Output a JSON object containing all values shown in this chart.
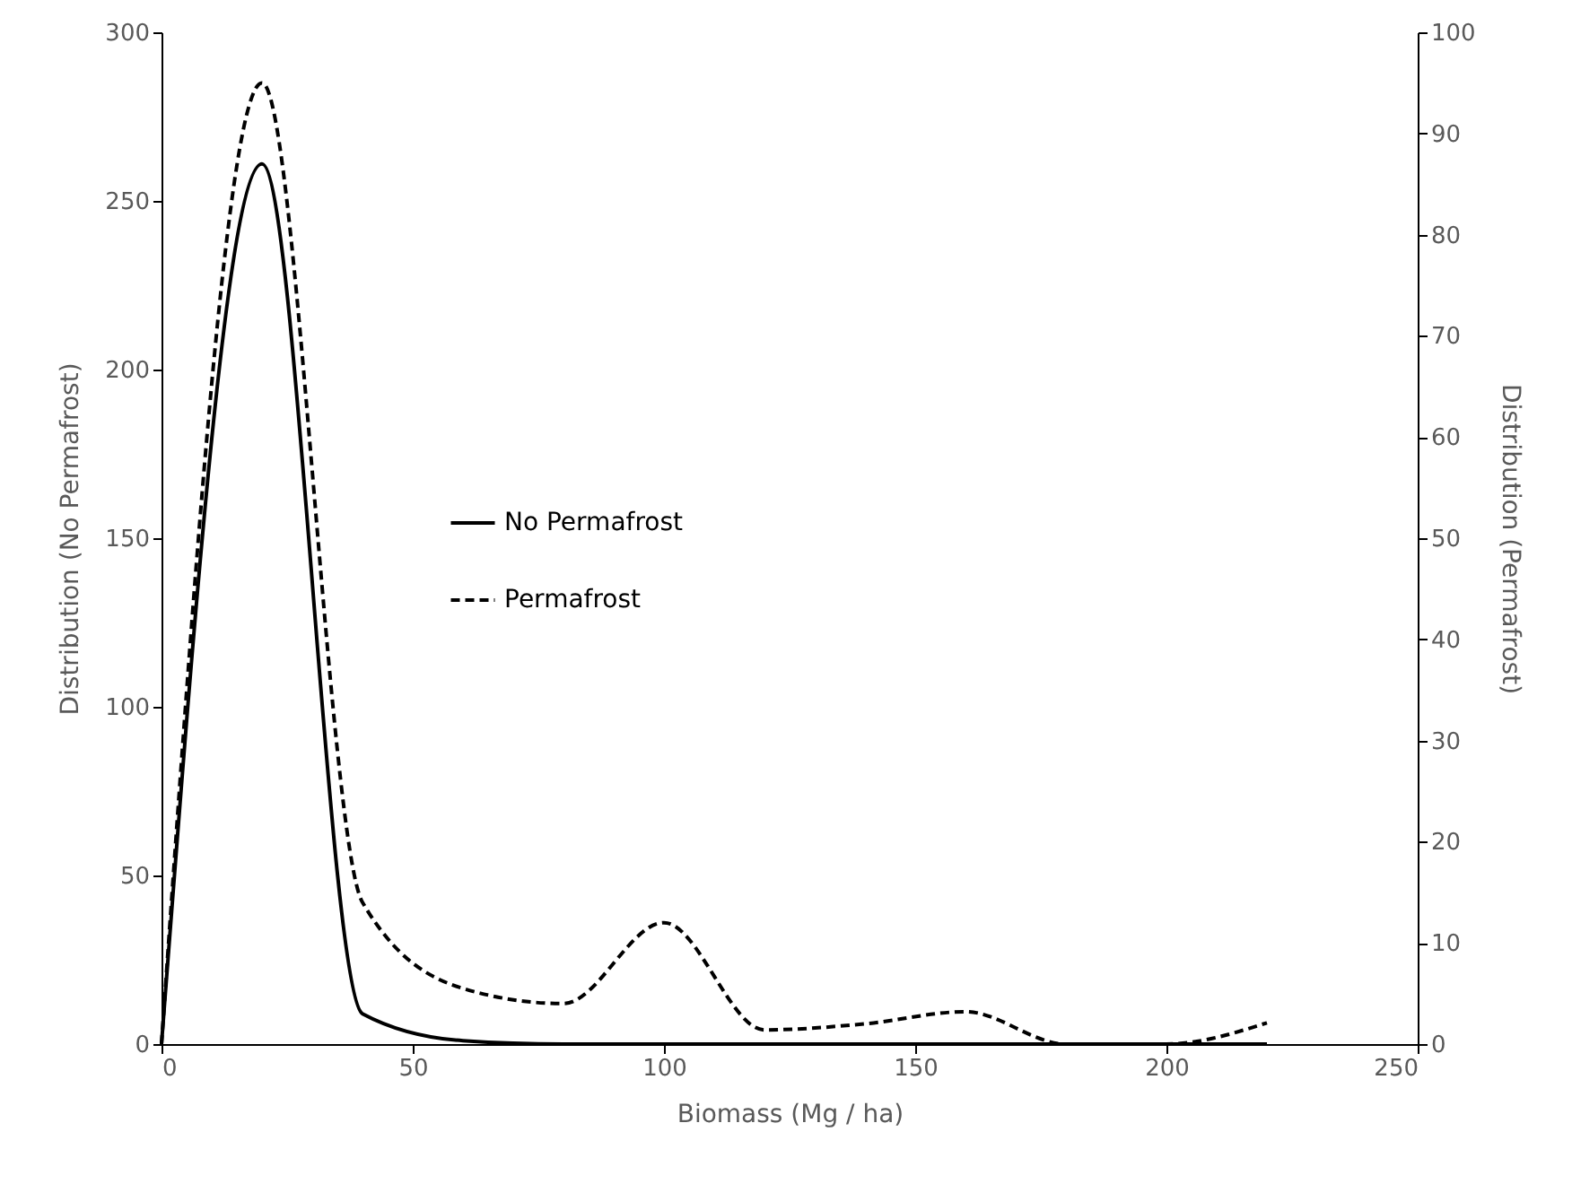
{
  "chart_data": {
    "type": "line",
    "xlabel": "Biomass (Mg / ha)",
    "ylabel": "Distribution (No Permafrost)",
    "y2label": "Distribution (Permafrost)",
    "x": [
      0,
      20,
      40,
      60,
      80,
      100,
      120,
      140,
      160,
      180,
      200,
      220
    ],
    "series": [
      {
        "name": "No Permafrost",
        "color": "#000000",
        "line_style": "solid",
        "values": [
          0,
          261,
          9,
          1,
          0,
          0,
          0,
          0,
          0,
          0,
          0,
          0
        ]
      },
      {
        "name": "Permafrost",
        "color": "#000000",
        "line_style": "dashed",
        "axis": "y2",
        "values": [
          0,
          95,
          14,
          5.5,
          4,
          12,
          1.4,
          2,
          3.2,
          0,
          0,
          2.1
        ]
      }
    ],
    "xlim": [
      0,
      250
    ],
    "xticks": [
      0,
      50,
      100,
      150,
      200,
      250
    ],
    "ylim": [
      0,
      300
    ],
    "yticks": [
      0,
      50,
      100,
      150,
      200,
      250,
      300
    ],
    "y2lim": [
      0,
      100
    ],
    "y2ticks": [
      0,
      10,
      20,
      30,
      40,
      50,
      60,
      70,
      80,
      90,
      100
    ],
    "grid": false,
    "legend": "left"
  }
}
